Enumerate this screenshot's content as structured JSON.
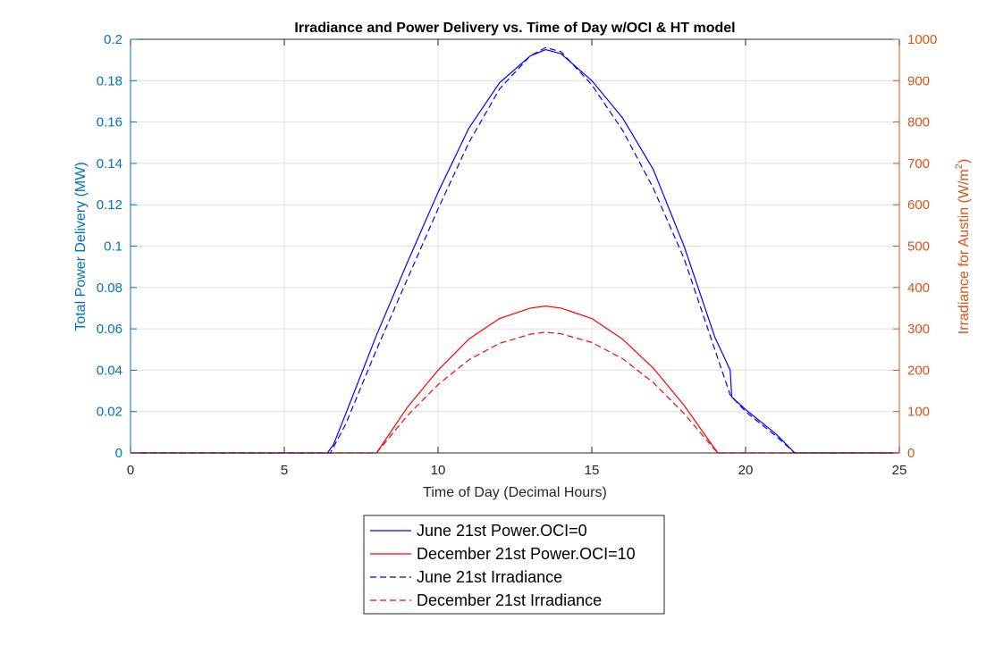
{
  "chart_data": {
    "type": "line",
    "title": "Irradiance and Power Delivery vs. Time of Day w/OCI & HT model",
    "xlabel": "Time of Day (Decimal Hours)",
    "ylabel_left": "Total Power Delivery (MW)",
    "ylabel_right_main": "Irradiance for Austin (W/m",
    "ylabel_right_sup": "2",
    "ylabel_right_tail": ")",
    "xlim": [
      0,
      25
    ],
    "ylim_left": [
      0,
      0.2
    ],
    "ylim_right": [
      0,
      1000
    ],
    "x_ticks": [
      "0",
      "5",
      "10",
      "15",
      "20",
      "25"
    ],
    "y_left_ticks": [
      "0",
      "0.02",
      "0.04",
      "0.06",
      "0.08",
      "0.1",
      "0.12",
      "0.14",
      "0.16",
      "0.18",
      "0.2"
    ],
    "y_right_ticks": [
      "0",
      "100",
      "200",
      "300",
      "400",
      "500",
      "600",
      "700",
      "800",
      "900",
      "1000"
    ],
    "grid": true,
    "legend_position": "below-center",
    "colors": {
      "left_axis": "#0072BD",
      "right_axis": "#D95319",
      "blue": "#0000FF",
      "red": "#FF0000"
    },
    "series": [
      {
        "name": "June 21st Power.OCI=0",
        "axis": "left",
        "color": "#0000FF",
        "dash": "solid",
        "x": [
          0,
          6.4,
          6.6,
          7,
          8,
          9,
          10,
          11,
          12,
          13,
          13.5,
          14,
          15,
          16,
          17,
          18,
          19,
          19.5,
          19.55,
          20,
          21,
          21.6,
          25
        ],
        "y": [
          0,
          0,
          0.004,
          0.019,
          0.057,
          0.092,
          0.126,
          0.157,
          0.179,
          0.192,
          0.195,
          0.193,
          0.18,
          0.162,
          0.137,
          0.1,
          0.056,
          0.04,
          0.027,
          0.021,
          0.009,
          0,
          0
        ]
      },
      {
        "name": "December 21st Power.OCI=10",
        "axis": "left",
        "color": "#FF0000",
        "dash": "solid",
        "x": [
          0,
          8.0,
          9,
          10,
          11,
          12,
          13,
          13.5,
          14,
          15,
          16,
          17,
          18,
          19,
          19.1,
          25
        ],
        "y": [
          0,
          0,
          0.022,
          0.04,
          0.055,
          0.065,
          0.07,
          0.071,
          0.07,
          0.065,
          0.055,
          0.041,
          0.023,
          0.002,
          0,
          0
        ]
      },
      {
        "name": "June 21st Irradiance",
        "axis": "right",
        "color": "#0000FF",
        "dash": "dashed",
        "x": [
          0,
          6.5,
          7,
          8,
          9,
          10,
          11,
          12,
          13,
          13.5,
          14,
          15,
          16,
          17,
          18,
          19,
          19.5,
          20,
          21,
          21.6,
          25
        ],
        "y": [
          0,
          0,
          70,
          250,
          420,
          590,
          750,
          880,
          960,
          980,
          970,
          890,
          780,
          640,
          470,
          250,
          140,
          100,
          40,
          0,
          0
        ]
      },
      {
        "name": "December 21st Irradiance",
        "axis": "right",
        "color": "#FF0000",
        "dash": "dashed",
        "x": [
          0,
          8.0,
          9,
          10,
          11,
          12,
          13,
          13.5,
          14,
          15,
          16,
          17,
          18,
          19,
          19.1,
          25
        ],
        "y": [
          0,
          0,
          90,
          165,
          225,
          265,
          287,
          292,
          288,
          267,
          228,
          170,
          95,
          8,
          0,
          0
        ]
      }
    ]
  }
}
